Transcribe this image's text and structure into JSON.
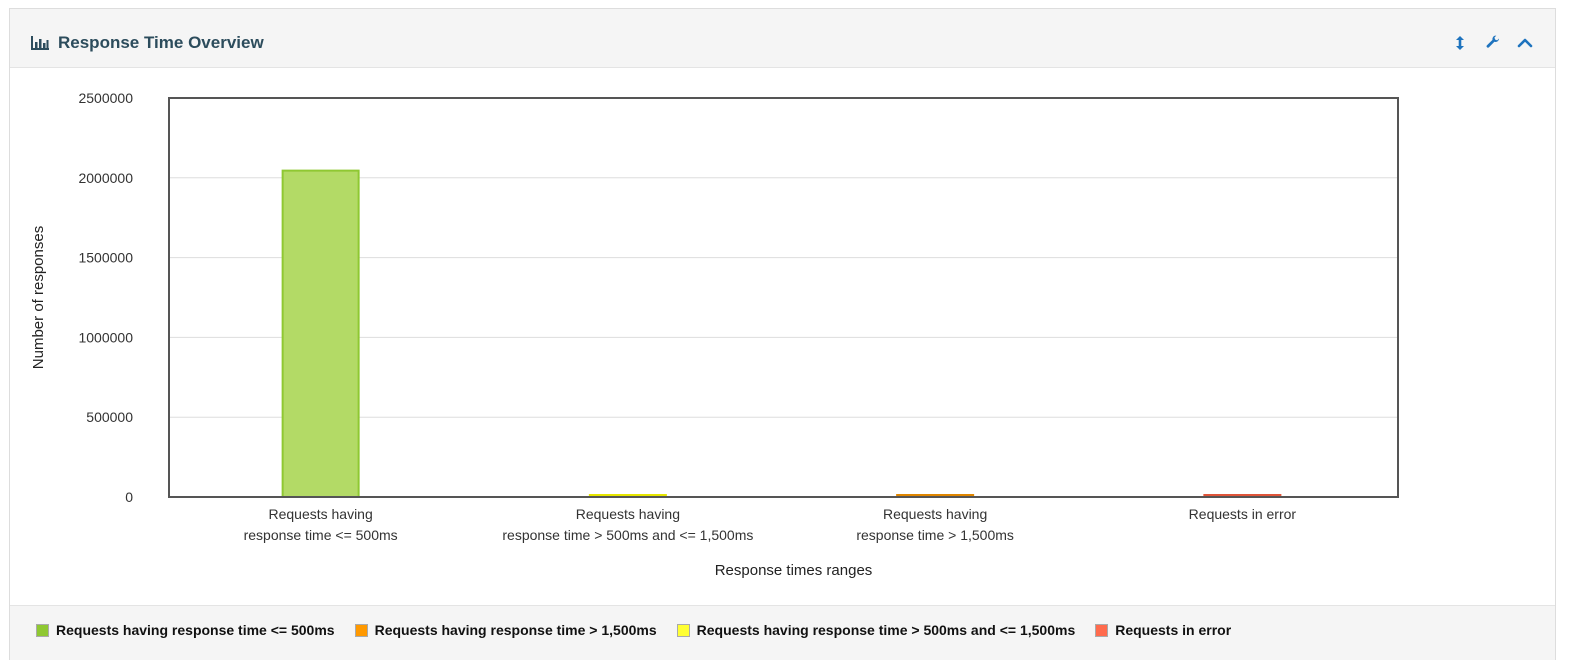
{
  "panel": {
    "title": "Response Time Overview",
    "title_icon": "bar-chart-icon",
    "tools": [
      "resize-vertical-icon",
      "wrench-icon",
      "chevron-up-icon"
    ]
  },
  "chart_data": {
    "type": "bar",
    "title": "",
    "xlabel": "Response times ranges",
    "ylabel": "Number of responses",
    "ylim": [
      0,
      2500000
    ],
    "yticks": [
      "0",
      "500000",
      "1000000",
      "1500000",
      "2000000",
      "2500000"
    ],
    "ytick_values": [
      0,
      500000,
      1000000,
      1500000,
      2000000,
      2500000
    ],
    "grid": true,
    "legend_position": "bottom",
    "categories": [
      [
        "Requests having",
        "response time <= 500ms"
      ],
      [
        "Requests having",
        "response time > 500ms and <= 1,500ms"
      ],
      [
        "Requests having",
        "response time > 1,500ms"
      ],
      [
        "Requests in error"
      ]
    ],
    "values": [
      2045000,
      3500,
      3000,
      3200
    ],
    "colors": [
      "#b3da66",
      "#ffff33",
      "#ff9900",
      "#ff6b4d"
    ],
    "stroke_colors": [
      "#8fc832",
      "#e6e600",
      "#e08600",
      "#e0553a"
    ]
  },
  "legend": [
    {
      "label": "Requests having response time <= 500ms",
      "color": "#8fc832"
    },
    {
      "label": "Requests having response time > 1,500ms",
      "color": "#ff9900"
    },
    {
      "label": "Requests having response time > 500ms and <= 1,500ms",
      "color": "#ffff33"
    },
    {
      "label": "Requests in error",
      "color": "#ff6b4d"
    }
  ]
}
